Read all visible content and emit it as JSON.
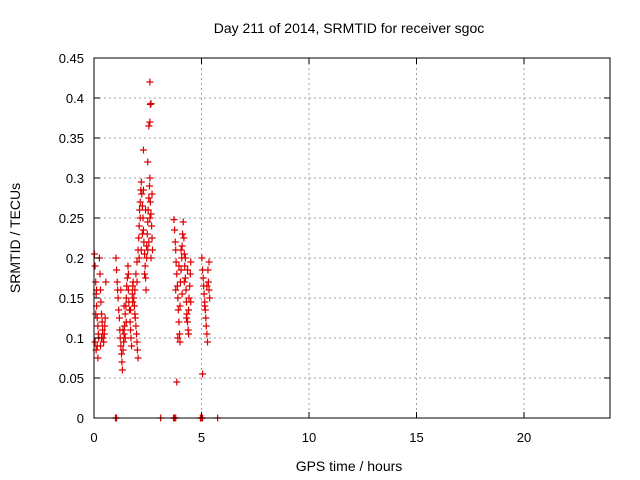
{
  "chart_data": {
    "type": "scatter",
    "title": "Day 211 of 2014, SRMTID for receiver sgoc",
    "xlabel": "GPS time / hours",
    "ylabel": "SRMTID / TECUs",
    "xlim": [
      0,
      24
    ],
    "ylim": [
      0,
      0.45
    ],
    "xticks": [
      0,
      5,
      10,
      15,
      20
    ],
    "xtick_labels": [
      "0",
      "5",
      "10",
      "15",
      "20"
    ],
    "yticks": [
      0,
      0.05,
      0.1,
      0.15,
      0.2,
      0.25,
      0.3,
      0.35,
      0.4,
      0.45
    ],
    "ytick_labels": [
      "0",
      "0.05",
      "0.1",
      "0.15",
      "0.2",
      "0.25",
      "0.3",
      "0.35",
      "0.4",
      "0.45"
    ],
    "grid": true,
    "series": [
      {
        "name": "SRMTID",
        "marker": "+",
        "color": "#dd0000",
        "points": [
          [
            0.02,
            0.205
          ],
          [
            0.05,
            0.19
          ],
          [
            0.08,
            0.17
          ],
          [
            0.1,
            0.155
          ],
          [
            0.12,
            0.14
          ],
          [
            0.15,
            0.125
          ],
          [
            0.18,
            0.115
          ],
          [
            0.2,
            0.105
          ],
          [
            0.05,
            0.095
          ],
          [
            0.1,
            0.085
          ],
          [
            0.15,
            0.09
          ],
          [
            0.22,
            0.1
          ],
          [
            0.25,
            0.2
          ],
          [
            0.28,
            0.18
          ],
          [
            0.3,
            0.16
          ],
          [
            0.32,
            0.145
          ],
          [
            0.35,
            0.13
          ],
          [
            0.38,
            0.12
          ],
          [
            0.4,
            0.11
          ],
          [
            0.42,
            0.1
          ],
          [
            0.45,
            0.095
          ],
          [
            0.48,
            0.105
          ],
          [
            0.5,
            0.115
          ],
          [
            0.52,
            0.125
          ],
          [
            0.55,
            0.17
          ],
          [
            0.18,
            0.075
          ],
          [
            0.3,
            0.09
          ],
          [
            0.35,
            0.1
          ],
          [
            0.08,
            0.13
          ],
          [
            0.12,
            0.16
          ],
          [
            1.02,
            0.2
          ],
          [
            1.05,
            0.185
          ],
          [
            1.08,
            0.17
          ],
          [
            1.1,
            0.16
          ],
          [
            1.12,
            0.15
          ],
          [
            1.15,
            0.135
          ],
          [
            1.18,
            0.125
          ],
          [
            1.2,
            0.11
          ],
          [
            1.22,
            0.1
          ],
          [
            1.25,
            0.09
          ],
          [
            1.28,
            0.08
          ],
          [
            1.3,
            0.07
          ],
          [
            1.32,
            0.06
          ],
          [
            1.35,
            0.085
          ],
          [
            1.38,
            0.095
          ],
          [
            1.4,
            0.105
          ],
          [
            1.42,
            0.115
          ],
          [
            1.45,
            0.13
          ],
          [
            1.48,
            0.14
          ],
          [
            1.5,
            0.15
          ],
          [
            1.52,
            0.165
          ],
          [
            1.55,
            0.175
          ],
          [
            1.58,
            0.19
          ],
          [
            1.6,
            0.16
          ],
          [
            1.62,
            0.145
          ],
          [
            1.65,
            0.135
          ],
          [
            1.68,
            0.12
          ],
          [
            1.7,
            0.11
          ],
          [
            1.72,
            0.1
          ],
          [
            1.75,
            0.09
          ],
          [
            1.78,
            0.155
          ],
          [
            1.8,
            0.165
          ],
          [
            1.82,
            0.17
          ],
          [
            1.85,
            0.15
          ],
          [
            1.88,
            0.14
          ],
          [
            1.9,
            0.13
          ],
          [
            1.92,
            0.125
          ],
          [
            1.95,
            0.115
          ],
          [
            1.98,
            0.105
          ],
          [
            2.0,
            0.095
          ],
          [
            2.02,
            0.085
          ],
          [
            2.05,
            0.075
          ],
          [
            1.25,
            0.16
          ],
          [
            1.4,
            0.14
          ],
          [
            1.5,
            0.12
          ],
          [
            1.6,
            0.18
          ],
          [
            1.7,
            0.135
          ],
          [
            1.8,
            0.145
          ],
          [
            1.9,
            0.16
          ],
          [
            2.0,
            0.17
          ],
          [
            1.35,
            0.11
          ],
          [
            1.45,
            0.1
          ],
          [
            1.95,
            0.18
          ],
          [
            2.0,
            0.195
          ],
          [
            2.05,
            0.21
          ],
          [
            2.08,
            0.225
          ],
          [
            2.1,
            0.24
          ],
          [
            2.12,
            0.26
          ],
          [
            2.15,
            0.27
          ],
          [
            2.18,
            0.285
          ],
          [
            2.2,
            0.295
          ],
          [
            2.22,
            0.28
          ],
          [
            2.25,
            0.265
          ],
          [
            2.28,
            0.25
          ],
          [
            2.3,
            0.235
          ],
          [
            2.32,
            0.22
          ],
          [
            2.35,
            0.205
          ],
          [
            2.38,
            0.19
          ],
          [
            2.4,
            0.175
          ],
          [
            2.42,
            0.16
          ],
          [
            2.45,
            0.215
          ],
          [
            2.48,
            0.23
          ],
          [
            2.5,
            0.245
          ],
          [
            2.52,
            0.26
          ],
          [
            2.55,
            0.275
          ],
          [
            2.58,
            0.29
          ],
          [
            2.6,
            0.3
          ],
          [
            2.62,
            0.27
          ],
          [
            2.65,
            0.255
          ],
          [
            2.68,
            0.24
          ],
          [
            2.7,
            0.225
          ],
          [
            2.72,
            0.21
          ],
          [
            2.3,
            0.335
          ],
          [
            2.5,
            0.32
          ],
          [
            2.55,
            0.365
          ],
          [
            2.6,
            0.37
          ],
          [
            2.62,
            0.392
          ],
          [
            2.65,
            0.393
          ],
          [
            2.6,
            0.42
          ],
          [
            2.1,
            0.2
          ],
          [
            2.2,
            0.21
          ],
          [
            2.35,
            0.18
          ],
          [
            2.45,
            0.2
          ],
          [
            2.55,
            0.22
          ],
          [
            2.15,
            0.25
          ],
          [
            2.25,
            0.23
          ],
          [
            2.4,
            0.26
          ],
          [
            2.6,
            0.25
          ],
          [
            2.7,
            0.28
          ],
          [
            2.3,
            0.285
          ],
          [
            2.5,
            0.21
          ],
          [
            2.65,
            0.2
          ],
          [
            3.72,
            0.248
          ],
          [
            3.75,
            0.235
          ],
          [
            3.78,
            0.22
          ],
          [
            3.8,
            0.21
          ],
          [
            3.82,
            0.195
          ],
          [
            3.85,
            0.18
          ],
          [
            3.88,
            0.165
          ],
          [
            3.9,
            0.15
          ],
          [
            3.92,
            0.135
          ],
          [
            3.95,
            0.12
          ],
          [
            3.98,
            0.105
          ],
          [
            4.0,
            0.095
          ],
          [
            4.02,
            0.17
          ],
          [
            4.05,
            0.185
          ],
          [
            4.08,
            0.2
          ],
          [
            4.1,
            0.215
          ],
          [
            4.12,
            0.23
          ],
          [
            4.15,
            0.245
          ],
          [
            4.18,
            0.225
          ],
          [
            4.2,
            0.205
          ],
          [
            4.22,
            0.19
          ],
          [
            4.25,
            0.175
          ],
          [
            4.28,
            0.16
          ],
          [
            4.3,
            0.145
          ],
          [
            4.32,
            0.13
          ],
          [
            4.35,
            0.12
          ],
          [
            4.38,
            0.11
          ],
          [
            4.4,
            0.105
          ],
          [
            4.42,
            0.15
          ],
          [
            4.45,
            0.165
          ],
          [
            4.48,
            0.18
          ],
          [
            4.5,
            0.195
          ],
          [
            3.85,
            0.045
          ],
          [
            3.9,
            0.1
          ],
          [
            4.0,
            0.14
          ],
          [
            4.1,
            0.155
          ],
          [
            4.2,
            0.17
          ],
          [
            4.3,
            0.125
          ],
          [
            4.4,
            0.135
          ],
          [
            4.5,
            0.145
          ],
          [
            3.8,
            0.16
          ],
          [
            3.95,
            0.19
          ],
          [
            4.05,
            0.21
          ],
          [
            4.25,
            0.2
          ],
          [
            4.35,
            0.185
          ],
          [
            5.02,
            0.2
          ],
          [
            5.05,
            0.185
          ],
          [
            5.08,
            0.175
          ],
          [
            5.1,
            0.165
          ],
          [
            5.12,
            0.155
          ],
          [
            5.15,
            0.145
          ],
          [
            5.18,
            0.135
          ],
          [
            5.2,
            0.125
          ],
          [
            5.22,
            0.115
          ],
          [
            5.25,
            0.105
          ],
          [
            5.28,
            0.095
          ],
          [
            5.3,
            0.185
          ],
          [
            5.32,
            0.17
          ],
          [
            5.35,
            0.16
          ],
          [
            5.38,
            0.15
          ],
          [
            5.05,
            0.055
          ],
          [
            5.15,
            0.14
          ],
          [
            5.25,
            0.165
          ],
          [
            5.35,
            0.195
          ],
          [
            1.0,
            0.0
          ],
          [
            1.05,
            0.0
          ],
          [
            3.1,
            0.0
          ],
          [
            3.7,
            0.0
          ],
          [
            3.75,
            0.0
          ],
          [
            3.8,
            0.0
          ],
          [
            4.95,
            0.0
          ],
          [
            5.0,
            0.0
          ],
          [
            5.05,
            0.0
          ],
          [
            5.75,
            0.0
          ]
        ]
      }
    ]
  }
}
